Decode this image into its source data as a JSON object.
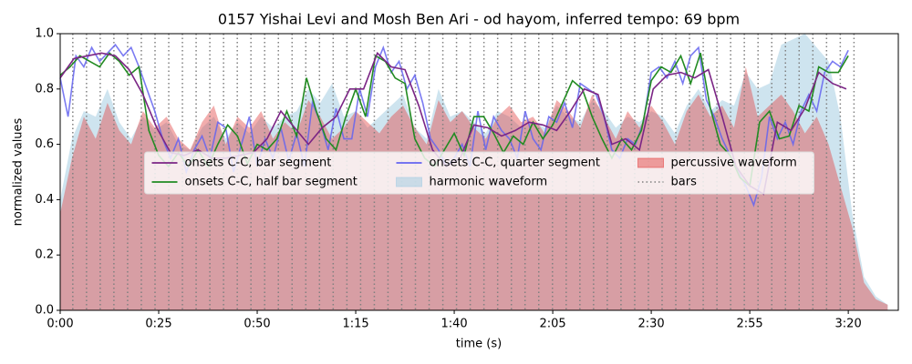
{
  "chart_data": {
    "type": "line",
    "title": "0157 Yishai Levi and Mosh Ben Ari - od hayom, inferred tempo: 69 bpm",
    "x_label": "time (s)",
    "y_label": "normalized values",
    "xlim": [
      0,
      212.7
    ],
    "ylim": [
      0,
      1
    ],
    "xticks": [
      {
        "value": 0,
        "label": "0:00"
      },
      {
        "value": 25,
        "label": "0:25"
      },
      {
        "value": 50,
        "label": "0:50"
      },
      {
        "value": 75,
        "label": "1:15"
      },
      {
        "value": 100,
        "label": "1:40"
      },
      {
        "value": 125,
        "label": "2:05"
      },
      {
        "value": 150,
        "label": "2:30"
      },
      {
        "value": 175,
        "label": "2:55"
      },
      {
        "value": 200,
        "label": "3:20"
      }
    ],
    "yticks": [
      {
        "value": 0,
        "label": "0.0"
      },
      0.2,
      0.4,
      0.6,
      0.8,
      {
        "value": 1,
        "label": "1.0"
      }
    ],
    "legend": "center",
    "areas": [
      {
        "name": "harmonic waveform",
        "color": "#a6cde2",
        "x": [
          0,
          3,
          6,
          9,
          12,
          15,
          18,
          21,
          24,
          27,
          30,
          33,
          36,
          39,
          42,
          45,
          48,
          51,
          54,
          57,
          60,
          63,
          66,
          69,
          72,
          75,
          78,
          81,
          84,
          87,
          90,
          93,
          96,
          99,
          102,
          105,
          108,
          111,
          114,
          117,
          120,
          123,
          126,
          129,
          132,
          135,
          138,
          141,
          144,
          147,
          150,
          153,
          156,
          159,
          162,
          165,
          168,
          171,
          174,
          177,
          180,
          183,
          186,
          189,
          192,
          195,
          198,
          201,
          204,
          207,
          210
        ],
        "values": [
          0.4,
          0.62,
          0.72,
          0.7,
          0.8,
          0.68,
          0.62,
          0.7,
          0.65,
          0.68,
          0.6,
          0.58,
          0.66,
          0.7,
          0.62,
          0.68,
          0.64,
          0.7,
          0.66,
          0.7,
          0.72,
          0.8,
          0.75,
          0.82,
          0.7,
          0.72,
          0.66,
          0.7,
          0.74,
          0.78,
          0.66,
          0.62,
          0.8,
          0.7,
          0.72,
          0.68,
          0.64,
          0.72,
          0.7,
          0.66,
          0.68,
          0.66,
          0.74,
          0.7,
          0.68,
          0.76,
          0.72,
          0.66,
          0.7,
          0.68,
          0.72,
          0.7,
          0.64,
          0.74,
          0.8,
          0.72,
          0.76,
          0.74,
          0.86,
          0.8,
          0.82,
          0.96,
          0.98,
          1.0,
          0.95,
          0.9,
          0.7,
          0.35,
          0.12,
          0.05,
          0.02
        ]
      },
      {
        "name": "percussive waveform",
        "color": "#e34a4a",
        "x": [
          0,
          3,
          6,
          9,
          12,
          15,
          18,
          21,
          24,
          27,
          30,
          33,
          36,
          39,
          42,
          45,
          48,
          51,
          54,
          57,
          60,
          63,
          66,
          69,
          72,
          75,
          78,
          81,
          84,
          87,
          90,
          93,
          96,
          99,
          102,
          105,
          108,
          111,
          114,
          117,
          120,
          123,
          126,
          129,
          132,
          135,
          138,
          141,
          144,
          147,
          150,
          153,
          156,
          159,
          162,
          165,
          168,
          171,
          174,
          177,
          180,
          183,
          186,
          189,
          192,
          195,
          198,
          201,
          204,
          207,
          210
        ],
        "values": [
          0.35,
          0.55,
          0.7,
          0.62,
          0.75,
          0.65,
          0.6,
          0.72,
          0.66,
          0.7,
          0.62,
          0.58,
          0.68,
          0.74,
          0.6,
          0.7,
          0.66,
          0.72,
          0.62,
          0.68,
          0.64,
          0.76,
          0.7,
          0.62,
          0.66,
          0.72,
          0.68,
          0.64,
          0.7,
          0.74,
          0.66,
          0.6,
          0.76,
          0.68,
          0.72,
          0.66,
          0.62,
          0.7,
          0.74,
          0.68,
          0.7,
          0.64,
          0.76,
          0.72,
          0.66,
          0.78,
          0.7,
          0.62,
          0.72,
          0.66,
          0.74,
          0.68,
          0.6,
          0.72,
          0.78,
          0.7,
          0.74,
          0.66,
          0.88,
          0.7,
          0.74,
          0.78,
          0.72,
          0.64,
          0.7,
          0.6,
          0.45,
          0.3,
          0.1,
          0.04,
          0.02
        ]
      }
    ],
    "vlines": {
      "name": "bars",
      "color": "#808080",
      "x": [
        3.2,
        6.68,
        10.16,
        13.63,
        17.11,
        20.59,
        24.07,
        27.55,
        31.02,
        34.5,
        37.98,
        41.46,
        44.94,
        48.41,
        51.89,
        55.37,
        58.85,
        62.33,
        65.8,
        69.28,
        72.76,
        76.24,
        79.72,
        83.19,
        86.67,
        90.15,
        93.63,
        97.11,
        100.58,
        104.06,
        107.54,
        111.02,
        114.5,
        117.97,
        121.45,
        124.93,
        128.41,
        131.89,
        135.36,
        138.84,
        142.32,
        145.8,
        149.28,
        152.75,
        156.23,
        159.71,
        163.19,
        166.67,
        170.14,
        173.62,
        177.1,
        180.58,
        184.06,
        187.53,
        191.01,
        194.49,
        197.97,
        201.45
      ]
    },
    "series": [
      {
        "name": "onsets C-C, quarter segment",
        "color": "#6464f0",
        "x": [
          0,
          2,
          4,
          6,
          8,
          10,
          12,
          14,
          16,
          18,
          20,
          22,
          24,
          26,
          28,
          30,
          32,
          34,
          36,
          38,
          40,
          42,
          44,
          46,
          48,
          50,
          52,
          54,
          56,
          58,
          60,
          62,
          64,
          66,
          68,
          70,
          72,
          74,
          76,
          78,
          80,
          82,
          84,
          86,
          88,
          90,
          92,
          94,
          96,
          98,
          100,
          102,
          104,
          106,
          108,
          110,
          112,
          114,
          116,
          118,
          120,
          122,
          124,
          126,
          128,
          130,
          132,
          134,
          136,
          138,
          140,
          142,
          144,
          146,
          148,
          150,
          152,
          154,
          156,
          158,
          160,
          162,
          164,
          166,
          168,
          170,
          172,
          174,
          176,
          178,
          180,
          182,
          184,
          186,
          188,
          190,
          192,
          194,
          196,
          198,
          200
        ],
        "values": [
          0.84,
          0.7,
          0.92,
          0.88,
          0.95,
          0.9,
          0.93,
          0.96,
          0.92,
          0.95,
          0.88,
          0.8,
          0.72,
          0.62,
          0.55,
          0.62,
          0.5,
          0.58,
          0.63,
          0.55,
          0.68,
          0.66,
          0.5,
          0.6,
          0.7,
          0.52,
          0.62,
          0.55,
          0.66,
          0.54,
          0.64,
          0.52,
          0.75,
          0.68,
          0.58,
          0.73,
          0.62,
          0.62,
          0.8,
          0.7,
          0.88,
          0.95,
          0.86,
          0.9,
          0.8,
          0.85,
          0.75,
          0.62,
          0.58,
          0.52,
          0.55,
          0.6,
          0.52,
          0.72,
          0.58,
          0.7,
          0.65,
          0.62,
          0.55,
          0.72,
          0.62,
          0.58,
          0.7,
          0.68,
          0.75,
          0.66,
          0.82,
          0.8,
          0.78,
          0.7,
          0.58,
          0.55,
          0.62,
          0.6,
          0.68,
          0.86,
          0.88,
          0.84,
          0.9,
          0.82,
          0.92,
          0.95,
          0.76,
          0.7,
          0.62,
          0.56,
          0.5,
          0.45,
          0.38,
          0.48,
          0.7,
          0.62,
          0.68,
          0.6,
          0.72,
          0.78,
          0.72,
          0.86,
          0.9,
          0.88,
          0.94
        ]
      },
      {
        "name": "onsets C-C, half bar segment",
        "color": "#228b22",
        "x": [
          0,
          2.5,
          5,
          7.5,
          10,
          12.5,
          15,
          17.5,
          20,
          22.5,
          25,
          27.5,
          30,
          32.5,
          35,
          37.5,
          40,
          42.5,
          45,
          47.5,
          50,
          52.5,
          55,
          57.5,
          60,
          62.5,
          65,
          67.5,
          70,
          72.5,
          75,
          77.5,
          80,
          82.5,
          85,
          87.5,
          90,
          92.5,
          95,
          97.5,
          100,
          102.5,
          105,
          107.5,
          110,
          112.5,
          115,
          117.5,
          120,
          122.5,
          125,
          127.5,
          130,
          132.5,
          135,
          137.5,
          140,
          142.5,
          145,
          147.5,
          150,
          152.5,
          155,
          157.5,
          160,
          162.5,
          165,
          167.5,
          170,
          172.5,
          175,
          177.5,
          180,
          182.5,
          185,
          187.5,
          190,
          192.5,
          195,
          197.5,
          200
        ],
        "values": [
          0.85,
          0.88,
          0.92,
          0.9,
          0.88,
          0.93,
          0.9,
          0.85,
          0.88,
          0.65,
          0.56,
          0.52,
          0.57,
          0.52,
          0.58,
          0.52,
          0.6,
          0.67,
          0.63,
          0.53,
          0.6,
          0.58,
          0.62,
          0.72,
          0.63,
          0.84,
          0.72,
          0.62,
          0.58,
          0.7,
          0.8,
          0.7,
          0.92,
          0.9,
          0.84,
          0.82,
          0.62,
          0.55,
          0.52,
          0.58,
          0.64,
          0.56,
          0.7,
          0.7,
          0.64,
          0.57,
          0.63,
          0.6,
          0.68,
          0.62,
          0.67,
          0.75,
          0.83,
          0.8,
          0.7,
          0.62,
          0.55,
          0.62,
          0.58,
          0.65,
          0.83,
          0.88,
          0.86,
          0.92,
          0.82,
          0.93,
          0.73,
          0.6,
          0.56,
          0.48,
          0.45,
          0.68,
          0.72,
          0.62,
          0.63,
          0.74,
          0.72,
          0.88,
          0.86,
          0.86,
          0.92
        ]
      },
      {
        "name": "onsets C-C, bar segment",
        "color": "#7b2585",
        "x": [
          0,
          3.5,
          7,
          10.5,
          14,
          17.5,
          21,
          24.5,
          28,
          31.5,
          35,
          38.5,
          42,
          45.5,
          49,
          52.5,
          56,
          59.5,
          63,
          66.5,
          70,
          73.5,
          77,
          80.5,
          84,
          87.5,
          91,
          94.5,
          98,
          101.5,
          105,
          108.5,
          112,
          115.5,
          119,
          122.5,
          126,
          129.5,
          133,
          136.5,
          140,
          143.5,
          147,
          150.5,
          154,
          157.5,
          161,
          164.5,
          168,
          171.5,
          175,
          178.5,
          182,
          185.5,
          189,
          192.5,
          196,
          199.5
        ],
        "values": [
          0.84,
          0.91,
          0.92,
          0.93,
          0.92,
          0.87,
          0.78,
          0.66,
          0.57,
          0.56,
          0.58,
          0.55,
          0.55,
          0.56,
          0.57,
          0.62,
          0.72,
          0.66,
          0.6,
          0.66,
          0.7,
          0.8,
          0.8,
          0.93,
          0.88,
          0.87,
          0.74,
          0.58,
          0.52,
          0.55,
          0.67,
          0.66,
          0.63,
          0.65,
          0.68,
          0.67,
          0.65,
          0.72,
          0.8,
          0.78,
          0.6,
          0.62,
          0.58,
          0.8,
          0.85,
          0.86,
          0.84,
          0.87,
          0.7,
          0.52,
          0.45,
          0.42,
          0.68,
          0.65,
          0.73,
          0.86,
          0.82,
          0.8
        ]
      }
    ]
  }
}
